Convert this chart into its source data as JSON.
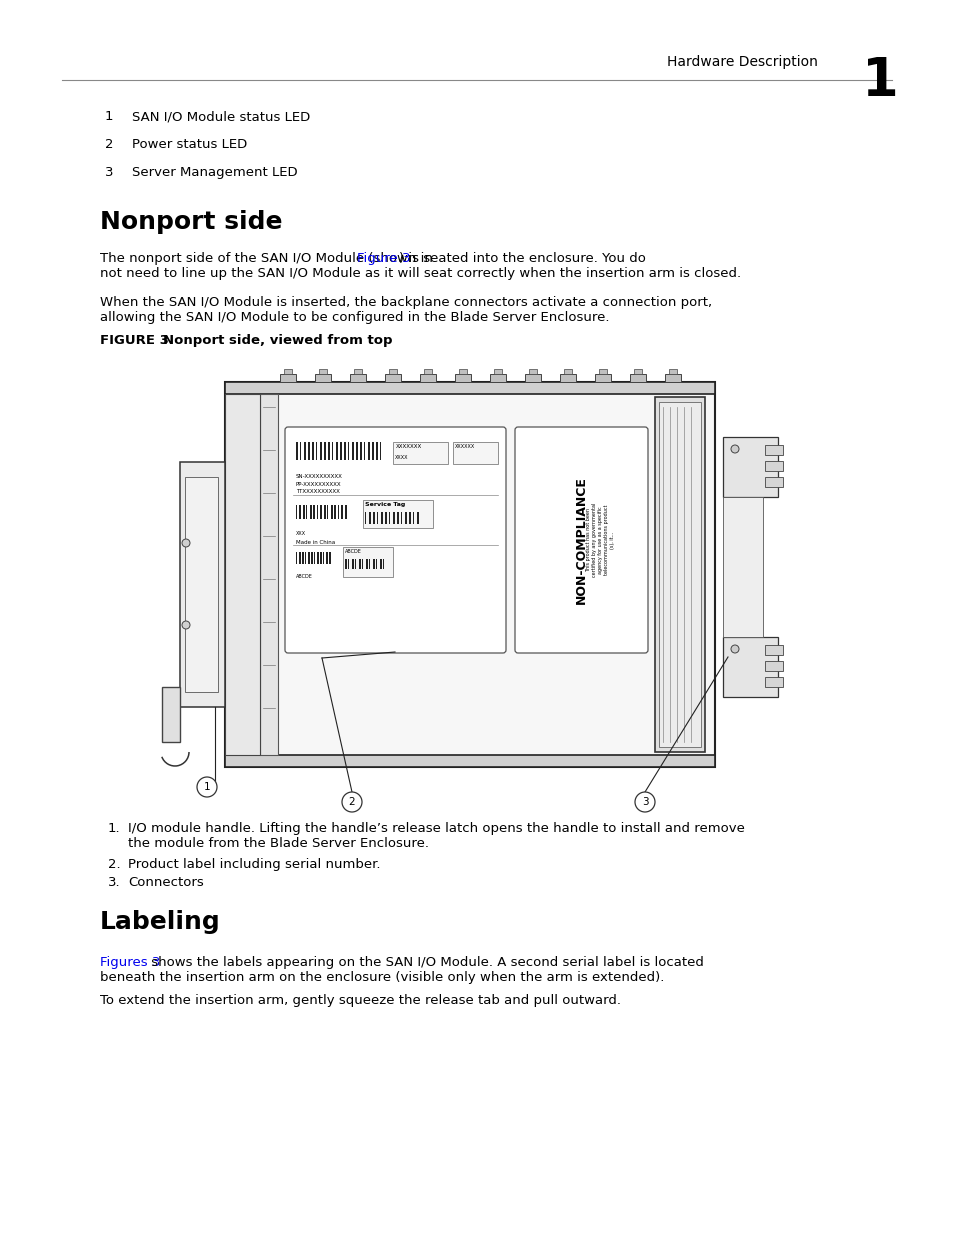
{
  "page_background": "#ffffff",
  "header_text": "Hardware Description",
  "header_number": "1",
  "body_font_size": 9.5,
  "title_font_size": 18,
  "caption_font_size": 9.5,
  "link_color": "#0000ee",
  "text_color": "#000000",
  "list_items_top": [
    {
      "num": "1",
      "text": "SAN I/O Module status LED"
    },
    {
      "num": "2",
      "text": "Power status LED"
    },
    {
      "num": "3",
      "text": "Server Management LED"
    }
  ],
  "section1_title": "Nonport side",
  "para1_before": "The nonport side of the SAN I/O Module (shown in ",
  "para1_link": "Figure 3",
  "para1_after1": ") is seated into the enclosure. You do",
  "para1_after2": "not need to line up the SAN I/O Module as it will seat correctly when the insertion arm is closed.",
  "para2_line1": "When the SAN I/O Module is inserted, the backplane connectors activate a connection port,",
  "para2_line2": "allowing the SAN I/O Module to be configured in the Blade Server Enclosure.",
  "fig_bold": "FIGURE 3",
  "fig_caption": "Nonport side, viewed from top",
  "co1_text1": "I/O module handle. Lifting the handle’s release latch opens the handle to install and remove",
  "co1_text2": "the module from the Blade Server Enclosure.",
  "co2_text": "Product label including serial number.",
  "co3_text": "Connectors",
  "section2_title": "Labeling",
  "s2p1_link": "Figures 3",
  "s2p1_after1": " shows the labels appearing on the SAN I/O Module. A second serial label is located",
  "s2p1_after2": "beneath the insertion arm on the enclosure (visible only when the arm is extended).",
  "s2p2": "To extend the insertion arm, gently squeeze the release tab and pull outward."
}
